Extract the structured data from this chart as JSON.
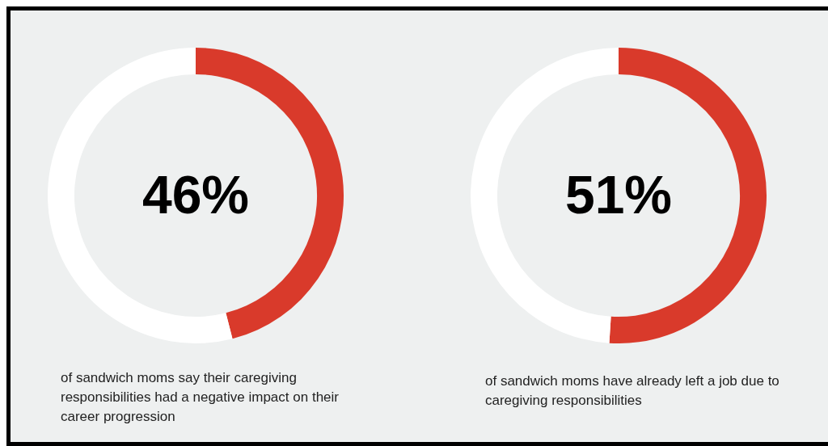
{
  "chart_data": [
    {
      "type": "donut",
      "categories": [
        null,
        null
      ],
      "values": [
        46,
        54
      ],
      "colors": [
        "#d93a2b",
        "#ffffff"
      ],
      "value_labels": [
        "46%",
        null
      ],
      "annotations": [
        "of sandwich moms say their caregiving responsibilities had a negative impact on their career progression"
      ]
    },
    {
      "type": "donut",
      "categories": [
        null,
        null
      ],
      "values": [
        51,
        49
      ],
      "colors": [
        "#d93a2b",
        "#ffffff"
      ],
      "value_labels": [
        "51%",
        null
      ],
      "annotations": [
        "of sandwich moms have already left a job due to caregiving responsibilities"
      ]
    }
  ]
}
